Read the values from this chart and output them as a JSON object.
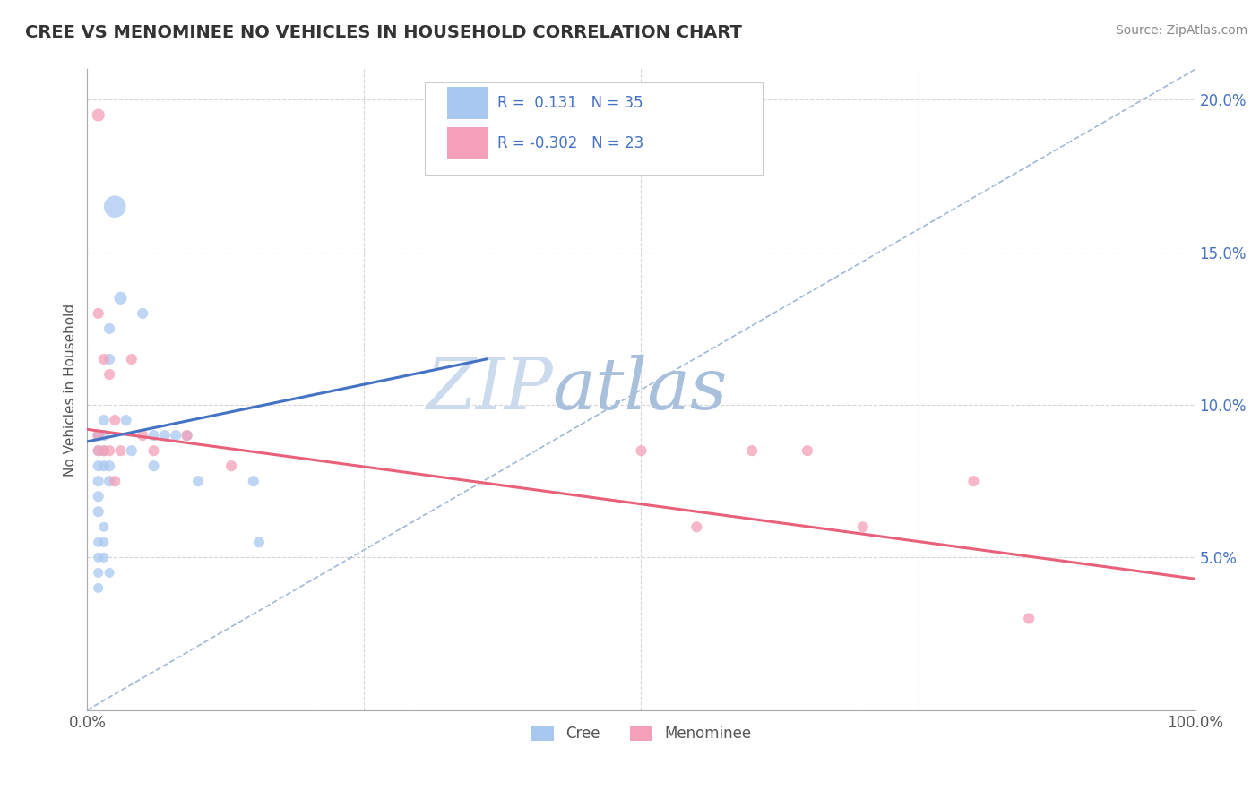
{
  "title": "CREE VS MENOMINEE NO VEHICLES IN HOUSEHOLD CORRELATION CHART",
  "source": "Source: ZipAtlas.com",
  "ylabel": "No Vehicles in Household",
  "xlim": [
    0.0,
    1.0
  ],
  "ylim": [
    0.0,
    0.21
  ],
  "cree_R": 0.131,
  "cree_N": 35,
  "menominee_R": -0.302,
  "menominee_N": 23,
  "cree_color": "#a8c8f0",
  "menominee_color": "#f4a0b8",
  "cree_line_color": "#4472c4",
  "menominee_line_color": "#e8607a",
  "dashed_line_color": "#a0b8d8",
  "background_color": "#ffffff",
  "watermark_zip": "ZIP",
  "watermark_atlas": "atlas",
  "watermark_color_zip": "#c8d8ee",
  "watermark_color_atlas": "#a0b8d8",
  "cree_x": [
    0.01,
    0.01,
    0.01,
    0.01,
    0.01,
    0.01,
    0.01,
    0.01,
    0.01,
    0.01,
    0.015,
    0.015,
    0.015,
    0.015,
    0.015,
    0.015,
    0.015,
    0.02,
    0.02,
    0.02,
    0.02,
    0.02,
    0.025,
    0.03,
    0.035,
    0.04,
    0.05,
    0.06,
    0.06,
    0.07,
    0.08,
    0.09,
    0.1,
    0.15,
    0.155
  ],
  "cree_y": [
    0.09,
    0.085,
    0.08,
    0.075,
    0.07,
    0.065,
    0.055,
    0.05,
    0.045,
    0.04,
    0.095,
    0.09,
    0.085,
    0.08,
    0.06,
    0.055,
    0.05,
    0.125,
    0.115,
    0.08,
    0.075,
    0.045,
    0.165,
    0.135,
    0.095,
    0.085,
    0.13,
    0.09,
    0.08,
    0.09,
    0.09,
    0.09,
    0.075,
    0.075,
    0.055
  ],
  "cree_sizes": [
    25,
    22,
    22,
    22,
    22,
    22,
    18,
    18,
    18,
    18,
    22,
    22,
    22,
    22,
    18,
    18,
    18,
    22,
    22,
    22,
    22,
    18,
    90,
    30,
    22,
    22,
    22,
    22,
    22,
    22,
    22,
    22,
    22,
    22,
    22
  ],
  "menominee_x": [
    0.01,
    0.01,
    0.01,
    0.01,
    0.015,
    0.015,
    0.02,
    0.02,
    0.025,
    0.025,
    0.03,
    0.04,
    0.05,
    0.06,
    0.09,
    0.13,
    0.5,
    0.55,
    0.6,
    0.65,
    0.7,
    0.8,
    0.85
  ],
  "menominee_y": [
    0.195,
    0.13,
    0.09,
    0.085,
    0.115,
    0.085,
    0.11,
    0.085,
    0.095,
    0.075,
    0.085,
    0.115,
    0.09,
    0.085,
    0.09,
    0.08,
    0.085,
    0.06,
    0.085,
    0.085,
    0.06,
    0.075,
    0.03
  ],
  "menominee_sizes": [
    30,
    22,
    22,
    22,
    22,
    22,
    22,
    22,
    22,
    22,
    22,
    22,
    22,
    22,
    22,
    22,
    22,
    22,
    22,
    22,
    22,
    22,
    22
  ],
  "cree_line_x": [
    0.0,
    0.36
  ],
  "cree_line_y": [
    0.088,
    0.115
  ],
  "men_line_x": [
    0.0,
    1.0
  ],
  "men_line_y": [
    0.092,
    0.043
  ],
  "dash_line_x": [
    0.0,
    1.0
  ],
  "dash_line_y": [
    0.0,
    0.21
  ]
}
